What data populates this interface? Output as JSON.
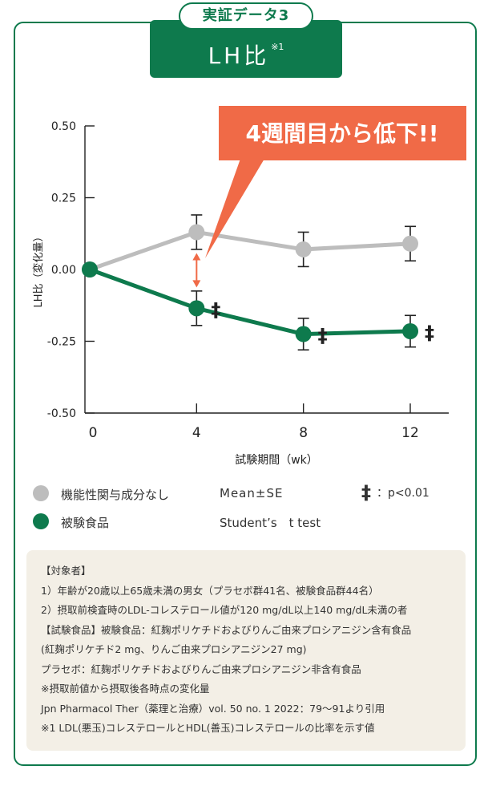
{
  "header": {
    "tab": "実証データ3",
    "title": "LH比",
    "title_note": "※1"
  },
  "callout": {
    "text": "4週間目から低下!!",
    "color": "#f06a47"
  },
  "chart_data": {
    "type": "line",
    "xlabel": "試験期間（wk）",
    "ylabel": "LH比（変化量）",
    "x": [
      0,
      4,
      8,
      12
    ],
    "x_tick_labels": [
      "0",
      "4",
      "8",
      "12"
    ],
    "y_ticks": [
      0.5,
      0.25,
      0.0,
      -0.25,
      -0.5
    ],
    "y_tick_labels": [
      "0.50",
      "0.25",
      "0.00",
      "-0.25",
      "-0.50"
    ],
    "ylim": [
      -0.5,
      0.5
    ],
    "series": [
      {
        "name": "機能性関与成分なし",
        "color": "#bdbdbd",
        "values": [
          0.0,
          0.13,
          0.07,
          0.09
        ],
        "err": [
          0,
          0.06,
          0.06,
          0.06
        ],
        "sig": [
          "",
          "",
          "",
          ""
        ]
      },
      {
        "name": "被験食品",
        "color": "#0e7a4d",
        "values": [
          0.0,
          -0.135,
          -0.225,
          -0.215
        ],
        "err": [
          0,
          0.06,
          0.055,
          0.055
        ],
        "sig": [
          "",
          "‡",
          "‡",
          "‡"
        ]
      }
    ],
    "arrow_color": "#f06a47"
  },
  "legend": {
    "items": [
      {
        "label": "機能性関与成分なし",
        "color": "#bdbdbd"
      },
      {
        "label": "被験食品",
        "color": "#0e7a4d"
      }
    ],
    "stat1": "Mean±SE",
    "stat2": "Student’s　t test",
    "sig_symbol": "‡",
    "sig_label": "：p<0.01"
  },
  "notes": [
    "【対象者】",
    "1）年齢が20歳以上65歳未満の男女（プラセボ群41名、被験食品群44名）",
    "2）摂取前検査時のLDL-コレステロール値が120 mg/dL以上140 mg/dL未満の者",
    "【試験食品】被験食品：紅麹ポリケチドおよびりんご由来プロシアニジン含有食品",
    "(紅麹ポリケチド2 mg、りんご由来プロシアニジン27 mg)",
    "プラセボ：紅麹ポリケチドおよびりんご由来プロシアニジン非含有食品",
    "※摂取前値から摂取後各時点の変化量",
    "Jpn Pharmacol Ther（薬理と治療）vol. 50 no. 1 2022：79～91より引用",
    "※1 LDL(悪玉)コレステロールとHDL(善玉)コレステロールの比率を示す値"
  ]
}
